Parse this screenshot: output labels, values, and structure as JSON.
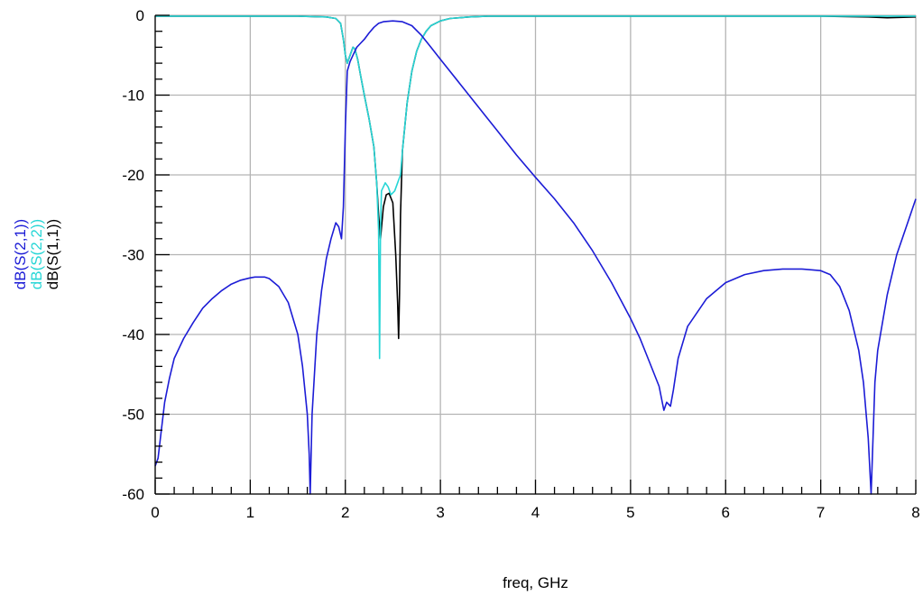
{
  "chart_data": {
    "type": "line",
    "xlabel": "freq, GHz",
    "xlim": [
      0,
      8
    ],
    "ylim": [
      -60,
      0
    ],
    "x_ticks": [
      "0",
      "1",
      "2",
      "3",
      "4",
      "5",
      "6",
      "7",
      "8"
    ],
    "y_ticks": [
      "0",
      "-10",
      "-20",
      "-30",
      "-40",
      "-50",
      "-60"
    ],
    "grid": true,
    "legend_position": "left, rotated vertical",
    "series": [
      {
        "name": "dB(S(2,1))",
        "color": "#1c1cd6",
        "x": [
          0.0,
          0.03,
          0.06,
          0.1,
          0.15,
          0.2,
          0.3,
          0.4,
          0.5,
          0.6,
          0.7,
          0.8,
          0.9,
          1.0,
          1.05,
          1.1,
          1.15,
          1.2,
          1.3,
          1.4,
          1.5,
          1.55,
          1.6,
          1.62,
          1.63,
          1.65,
          1.7,
          1.75,
          1.8,
          1.85,
          1.9,
          1.93,
          1.96,
          1.98,
          2.0,
          2.02,
          2.05,
          2.08,
          2.12,
          2.16,
          2.2,
          2.25,
          2.3,
          2.35,
          2.4,
          2.5,
          2.6,
          2.7,
          2.8,
          2.9,
          3.0,
          3.2,
          3.4,
          3.6,
          3.8,
          4.0,
          4.2,
          4.4,
          4.6,
          4.8,
          5.0,
          5.1,
          5.2,
          5.3,
          5.35,
          5.38,
          5.42,
          5.45,
          5.5,
          5.6,
          5.8,
          6.0,
          6.2,
          6.4,
          6.6,
          6.8,
          7.0,
          7.1,
          7.2,
          7.3,
          7.4,
          7.45,
          7.5,
          7.53,
          7.55,
          7.57,
          7.6,
          7.7,
          7.8,
          7.9,
          8.0
        ],
        "y": [
          -56.5,
          -55.5,
          -52.5,
          -48.5,
          -45.5,
          -43.0,
          -40.5,
          -38.5,
          -36.7,
          -35.5,
          -34.5,
          -33.7,
          -33.2,
          -32.9,
          -32.8,
          -32.8,
          -32.8,
          -33.0,
          -34.0,
          -36.0,
          -40.0,
          -44.0,
          -50.0,
          -55.0,
          -60.0,
          -50.0,
          -40.0,
          -34.5,
          -30.5,
          -28.0,
          -26.0,
          -26.5,
          -28.0,
          -24.0,
          -14.0,
          -7.0,
          -5.8,
          -5.0,
          -4.0,
          -3.5,
          -3.0,
          -2.2,
          -1.5,
          -1.0,
          -0.8,
          -0.7,
          -0.8,
          -1.3,
          -2.5,
          -4.0,
          -5.5,
          -8.5,
          -11.5,
          -14.5,
          -17.5,
          -20.3,
          -23.0,
          -26.0,
          -29.5,
          -33.5,
          -38.0,
          -40.5,
          -43.5,
          -46.5,
          -49.5,
          -48.5,
          -49.0,
          -47.0,
          -43.0,
          -39.0,
          -35.5,
          -33.5,
          -32.5,
          -32.0,
          -31.8,
          -31.8,
          -32.0,
          -32.5,
          -34.0,
          -37.0,
          -42.0,
          -46.0,
          -53.0,
          -60.0,
          -53.0,
          -46.0,
          -42.0,
          -35.0,
          -30.0,
          -26.5,
          -23.0
        ]
      },
      {
        "name": "dB(S(2,2))",
        "color": "#27d6d6",
        "x": [
          0.0,
          0.5,
          1.0,
          1.5,
          1.8,
          1.9,
          1.95,
          1.98,
          2.0,
          2.02,
          2.05,
          2.08,
          2.1,
          2.13,
          2.16,
          2.2,
          2.25,
          2.3,
          2.33,
          2.35,
          2.36,
          2.37,
          2.38,
          2.4,
          2.42,
          2.45,
          2.48,
          2.52,
          2.55,
          2.58,
          2.6,
          2.65,
          2.7,
          2.75,
          2.8,
          2.85,
          2.9,
          3.0,
          3.1,
          3.2,
          3.3,
          3.5,
          4.0,
          5.0,
          6.0,
          7.0,
          8.0
        ],
        "y": [
          -0.1,
          -0.1,
          -0.1,
          -0.1,
          -0.2,
          -0.4,
          -1.0,
          -3.0,
          -5.0,
          -6.0,
          -5.0,
          -4.0,
          -4.2,
          -5.5,
          -7.5,
          -10.0,
          -13.0,
          -16.5,
          -21.0,
          -27.0,
          -43.0,
          -27.0,
          -22.0,
          -21.5,
          -21.0,
          -21.5,
          -22.5,
          -22.0,
          -21.0,
          -20.0,
          -17.0,
          -11.0,
          -7.0,
          -4.5,
          -3.0,
          -2.0,
          -1.3,
          -0.7,
          -0.4,
          -0.3,
          -0.2,
          -0.1,
          -0.1,
          -0.1,
          -0.1,
          -0.1,
          -0.1
        ]
      },
      {
        "name": "dB(S(1,1))",
        "color": "#000000",
        "x": [
          0.0,
          0.5,
          1.0,
          1.5,
          1.8,
          1.9,
          1.95,
          1.98,
          2.0,
          2.02,
          2.05,
          2.08,
          2.1,
          2.13,
          2.16,
          2.2,
          2.25,
          2.3,
          2.33,
          2.35,
          2.37,
          2.4,
          2.43,
          2.46,
          2.5,
          2.53,
          2.55,
          2.56,
          2.57,
          2.58,
          2.6,
          2.65,
          2.7,
          2.75,
          2.8,
          2.85,
          2.9,
          3.0,
          3.1,
          3.2,
          3.3,
          3.5,
          4.0,
          5.0,
          6.0,
          7.0,
          7.5,
          7.7,
          8.0
        ],
        "y": [
          -0.1,
          -0.1,
          -0.1,
          -0.1,
          -0.2,
          -0.4,
          -1.0,
          -3.0,
          -5.0,
          -6.0,
          -5.0,
          -4.0,
          -4.2,
          -5.5,
          -7.5,
          -10.0,
          -13.0,
          -16.5,
          -21.0,
          -25.0,
          -28.0,
          -24.0,
          -22.5,
          -22.3,
          -23.5,
          -30.0,
          -36.0,
          -40.5,
          -35.0,
          -25.0,
          -17.0,
          -11.0,
          -7.0,
          -4.5,
          -3.0,
          -2.0,
          -1.3,
          -0.7,
          -0.4,
          -0.3,
          -0.2,
          -0.1,
          -0.1,
          -0.1,
          -0.1,
          -0.1,
          -0.2,
          -0.3,
          -0.2
        ]
      }
    ]
  }
}
